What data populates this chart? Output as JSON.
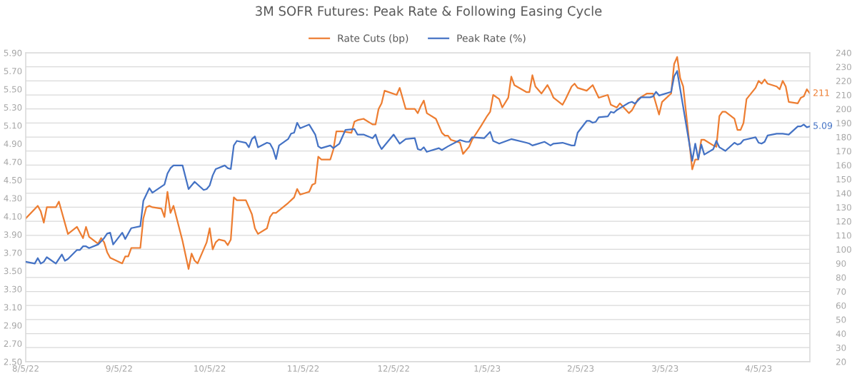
{
  "chart_data": {
    "type": "line",
    "title": "3M SOFR Futures: Peak Rate & Following Easing Cycle",
    "legend": "top",
    "grid": true,
    "marker": "none",
    "line_style": "solid",
    "xlim": [
      "2022-08-05",
      "2023-04-22"
    ],
    "xticks": [
      {
        "value": "2022-08-05",
        "label": "8/5/22"
      },
      {
        "value": "2022-09-05",
        "label": "9/5/22"
      },
      {
        "value": "2022-10-05",
        "label": "10/5/22"
      },
      {
        "value": "2022-11-05",
        "label": "11/5/22"
      },
      {
        "value": "2022-12-05",
        "label": "12/5/22"
      },
      {
        "value": "2023-01-05",
        "label": "1/5/23"
      },
      {
        "value": "2023-02-05",
        "label": "2/5/23"
      },
      {
        "value": "2023-03-05",
        "label": "3/5/23"
      },
      {
        "value": "2023-04-05",
        "label": "4/5/23"
      }
    ],
    "ylim": [
      2.5,
      5.9
    ],
    "yticks": [
      {
        "value": 2.5,
        "label": "2.50"
      },
      {
        "value": 2.7,
        "label": "2.70"
      },
      {
        "value": 2.9,
        "label": "2.90"
      },
      {
        "value": 3.1,
        "label": "3.10"
      },
      {
        "value": 3.3,
        "label": "3.30"
      },
      {
        "value": 3.5,
        "label": "3.50"
      },
      {
        "value": 3.7,
        "label": "3.70"
      },
      {
        "value": 3.9,
        "label": "3.90"
      },
      {
        "value": 4.1,
        "label": "4.10"
      },
      {
        "value": 4.3,
        "label": "4.30"
      },
      {
        "value": 4.5,
        "label": "4.50"
      },
      {
        "value": 4.7,
        "label": "4.70"
      },
      {
        "value": 4.9,
        "label": "4.90"
      },
      {
        "value": 5.1,
        "label": "5.10"
      },
      {
        "value": 5.3,
        "label": "5.30"
      },
      {
        "value": 5.5,
        "label": "5.50"
      },
      {
        "value": 5.7,
        "label": "5.70"
      },
      {
        "value": 5.9,
        "label": "5.90"
      }
    ],
    "y2lim": [
      20,
      240
    ],
    "y2ticks": [
      20,
      30,
      40,
      50,
      60,
      70,
      80,
      90,
      100,
      110,
      120,
      130,
      140,
      150,
      160,
      170,
      180,
      190,
      200,
      210,
      220,
      230,
      240
    ],
    "series": [
      {
        "name": "Rate Cuts (bp)",
        "color": "#ed7d31",
        "axis": "y2",
        "x": [
          "2022-08-05",
          "2022-08-09",
          "2022-08-10",
          "2022-08-11",
          "2022-08-12",
          "2022-08-15",
          "2022-08-16",
          "2022-08-19",
          "2022-08-22",
          "2022-08-24",
          "2022-08-25",
          "2022-08-26",
          "2022-08-29",
          "2022-08-30",
          "2022-08-31",
          "2022-09-01",
          "2022-09-02",
          "2022-09-06",
          "2022-09-07",
          "2022-09-08",
          "2022-09-09",
          "2022-09-12",
          "2022-09-13",
          "2022-09-14",
          "2022-09-15",
          "2022-09-16",
          "2022-09-19",
          "2022-09-20",
          "2022-09-21",
          "2022-09-22",
          "2022-09-23",
          "2022-09-26",
          "2022-09-28",
          "2022-09-29",
          "2022-09-30",
          "2022-10-01",
          "2022-10-04",
          "2022-10-05",
          "2022-10-06",
          "2022-10-07",
          "2022-10-08",
          "2022-10-10",
          "2022-10-11",
          "2022-10-12",
          "2022-10-13",
          "2022-10-14",
          "2022-10-17",
          "2022-10-19",
          "2022-10-20",
          "2022-10-21",
          "2022-10-24",
          "2022-10-25",
          "2022-10-26",
          "2022-10-27",
          "2022-10-31",
          "2022-11-01",
          "2022-11-02",
          "2022-11-03",
          "2022-11-04",
          "2022-11-07",
          "2022-11-08",
          "2022-11-09",
          "2022-11-10",
          "2022-11-11",
          "2022-11-14",
          "2022-11-15",
          "2022-11-16",
          "2022-11-18",
          "2022-11-21",
          "2022-11-22",
          "2022-11-23",
          "2022-11-25",
          "2022-11-28",
          "2022-11-29",
          "2022-11-30",
          "2022-12-01",
          "2022-12-02",
          "2022-12-06",
          "2022-12-07",
          "2022-12-09",
          "2022-12-12",
          "2022-12-13",
          "2022-12-14",
          "2022-12-15",
          "2022-12-16",
          "2022-12-19",
          "2022-12-21",
          "2022-12-22",
          "2022-12-23",
          "2022-12-24",
          "2022-12-27",
          "2022-12-28",
          "2022-12-30",
          "2022-12-31",
          "2023-01-03",
          "2023-01-05",
          "2023-01-06",
          "2023-01-07",
          "2023-01-09",
          "2023-01-10",
          "2023-01-12",
          "2023-01-13",
          "2023-01-14",
          "2023-01-18",
          "2023-01-19",
          "2023-01-20",
          "2023-01-21",
          "2023-01-23",
          "2023-01-25",
          "2023-01-26",
          "2023-01-27",
          "2023-01-30",
          "2023-01-31",
          "2023-02-02",
          "2023-02-03",
          "2023-02-04",
          "2023-02-07",
          "2023-02-09",
          "2023-02-11",
          "2023-02-14",
          "2023-02-15",
          "2023-02-17",
          "2023-02-18",
          "2023-02-21",
          "2023-02-22",
          "2023-02-24",
          "2023-02-27",
          "2023-03-01",
          "2023-03-03",
          "2023-03-04",
          "2023-03-07",
          "2023-03-08",
          "2023-03-09",
          "2023-03-10",
          "2023-03-11",
          "2023-03-14",
          "2023-03-15",
          "2023-03-16",
          "2023-03-17",
          "2023-03-18",
          "2023-03-21",
          "2023-03-22",
          "2023-03-23",
          "2023-03-24",
          "2023-03-25",
          "2023-03-28",
          "2023-03-29",
          "2023-03-30",
          "2023-03-31",
          "2023-04-01",
          "2023-04-04",
          "2023-04-05",
          "2023-04-06",
          "2023-04-07",
          "2023-04-08",
          "2023-04-11",
          "2023-04-12",
          "2023-04-13",
          "2023-04-14",
          "2023-04-15",
          "2023-04-18",
          "2023-04-19",
          "2023-04-20",
          "2023-04-21",
          "2023-04-22"
        ],
        "values": [
          122,
          131,
          127,
          119,
          130,
          130,
          134,
          111,
          116,
          108,
          116,
          109,
          104,
          108,
          105,
          98,
          94,
          90,
          95,
          95,
          101,
          101,
          122,
          130,
          131,
          130,
          129,
          123,
          141,
          126,
          131,
          106,
          86,
          97,
          92,
          90,
          105,
          115,
          100,
          105,
          107,
          106,
          103,
          107,
          137,
          135,
          135,
          125,
          115,
          111,
          115,
          123,
          126,
          126,
          133,
          135,
          137,
          143,
          139,
          141,
          146,
          147,
          166,
          164,
          164,
          171,
          184,
          184,
          183,
          191,
          192,
          193,
          189,
          189,
          200,
          204,
          213,
          210,
          215,
          200,
          200,
          197,
          202,
          206,
          197,
          193,
          183,
          181,
          181,
          178,
          176,
          168,
          173,
          178,
          188,
          195,
          198,
          210,
          207,
          201,
          208,
          223,
          217,
          212,
          212,
          224,
          216,
          211,
          217,
          213,
          208,
          203,
          207,
          216,
          218,
          215,
          213,
          217,
          208,
          210,
          203,
          201,
          204,
          197,
          199,
          207,
          211,
          211,
          196,
          205,
          211,
          232,
          237,
          222,
          216,
          157,
          164,
          164,
          178,
          178,
          174,
          173,
          195,
          198,
          198,
          193,
          185,
          185,
          190,
          207,
          215,
          220,
          218,
          221,
          218,
          216,
          214,
          220,
          216,
          205,
          204,
          208,
          209,
          214,
          211
        ],
        "value_labels": [
          null,
          null,
          null,
          null,
          null,
          null,
          null,
          null,
          null,
          null,
          null,
          null,
          null,
          null,
          null,
          null,
          null,
          null,
          null,
          null,
          null,
          null,
          null,
          null,
          null,
          null,
          null,
          null,
          null,
          null,
          null,
          null,
          null,
          null,
          null,
          null,
          null,
          null,
          null,
          null,
          null,
          null,
          null,
          null,
          null,
          null,
          null,
          null,
          null,
          null,
          null,
          null,
          null,
          null,
          null,
          null,
          null,
          null,
          null,
          null,
          null,
          null,
          null,
          null,
          null,
          null,
          null,
          null,
          null,
          null,
          null,
          null,
          null,
          null,
          null,
          null,
          null,
          null,
          null,
          null,
          null,
          null,
          null,
          null,
          null,
          null,
          null,
          null,
          null,
          null,
          null,
          null,
          null,
          null,
          null,
          null,
          null,
          null,
          null,
          null,
          null,
          null,
          null,
          null,
          null,
          null,
          null,
          null,
          null,
          null,
          null,
          null,
          null,
          null,
          null,
          null,
          null,
          null,
          null,
          null,
          null,
          null,
          null,
          null,
          null,
          null,
          null,
          null,
          null,
          null,
          null,
          null,
          null,
          null,
          null,
          null,
          null,
          null,
          null,
          null,
          null,
          null,
          null,
          null,
          null,
          null,
          null,
          null,
          null,
          null,
          null,
          null,
          null,
          null,
          null,
          null,
          null,
          null,
          null,
          null,
          null,
          null,
          null,
          null,
          "211"
        ]
      },
      {
        "name": "Peak Rate (%)",
        "color": "#4472c4",
        "x": [
          "2022-08-05",
          "2022-08-08",
          "2022-08-09",
          "2022-08-10",
          "2022-08-11",
          "2022-08-12",
          "2022-08-15",
          "2022-08-17",
          "2022-08-18",
          "2022-08-19",
          "2022-08-22",
          "2022-08-23",
          "2022-08-24",
          "2022-08-25",
          "2022-08-26",
          "2022-08-29",
          "2022-08-31",
          "2022-09-01",
          "2022-09-02",
          "2022-09-03",
          "2022-09-06",
          "2022-09-07",
          "2022-09-09",
          "2022-09-12",
          "2022-09-13",
          "2022-09-15",
          "2022-09-16",
          "2022-09-20",
          "2022-09-21",
          "2022-09-22",
          "2022-09-23",
          "2022-09-26",
          "2022-09-28",
          "2022-09-30",
          "2022-10-03",
          "2022-10-04",
          "2022-10-05",
          "2022-10-06",
          "2022-10-07",
          "2022-10-10",
          "2022-10-11",
          "2022-10-12",
          "2022-10-13",
          "2022-10-14",
          "2022-10-17",
          "2022-10-18",
          "2022-10-19",
          "2022-10-20",
          "2022-10-21",
          "2022-10-24",
          "2022-10-25",
          "2022-10-26",
          "2022-10-27",
          "2022-10-28",
          "2022-10-31",
          "2022-11-01",
          "2022-11-02",
          "2022-11-03",
          "2022-11-04",
          "2022-11-07",
          "2022-11-09",
          "2022-11-10",
          "2022-11-11",
          "2022-11-14",
          "2022-11-15",
          "2022-11-17",
          "2022-11-19",
          "2022-11-22",
          "2022-11-23",
          "2022-11-25",
          "2022-11-28",
          "2022-11-29",
          "2022-11-30",
          "2022-12-01",
          "2022-12-05",
          "2022-12-07",
          "2022-12-09",
          "2022-12-12",
          "2022-12-13",
          "2022-12-14",
          "2022-12-15",
          "2022-12-16",
          "2022-12-20",
          "2022-12-21",
          "2022-12-23",
          "2022-12-27",
          "2022-12-29",
          "2022-12-30",
          "2022-12-31",
          "2023-01-04",
          "2023-01-06",
          "2023-01-07",
          "2023-01-09",
          "2023-01-13",
          "2023-01-18",
          "2023-01-19",
          "2023-01-20",
          "2023-01-21",
          "2023-01-24",
          "2023-01-26",
          "2023-01-27",
          "2023-01-30",
          "2023-02-02",
          "2023-02-03",
          "2023-02-04",
          "2023-02-07",
          "2023-02-08",
          "2023-02-09",
          "2023-02-10",
          "2023-02-11",
          "2023-02-14",
          "2023-02-15",
          "2023-02-16",
          "2023-02-17",
          "2023-02-18",
          "2023-02-21",
          "2023-02-22",
          "2023-02-23",
          "2023-02-25",
          "2023-02-28",
          "2023-03-01",
          "2023-03-02",
          "2023-03-03",
          "2023-03-07",
          "2023-03-08",
          "2023-03-09",
          "2023-03-14",
          "2023-03-15",
          "2023-03-16",
          "2023-03-17",
          "2023-03-18",
          "2023-03-21",
          "2023-03-22",
          "2023-03-23",
          "2023-03-25",
          "2023-03-28",
          "2023-03-29",
          "2023-03-30",
          "2023-03-31",
          "2023-04-04",
          "2023-04-05",
          "2023-04-06",
          "2023-04-07",
          "2023-04-08",
          "2023-04-11",
          "2023-04-13",
          "2023-04-15",
          "2023-04-18",
          "2023-04-19",
          "2023-04-20",
          "2023-04-21",
          "2023-04-22"
        ],
        "values": [
          3.6,
          3.58,
          3.64,
          3.58,
          3.6,
          3.65,
          3.58,
          3.68,
          3.61,
          3.63,
          3.73,
          3.73,
          3.77,
          3.77,
          3.75,
          3.79,
          3.86,
          3.91,
          3.92,
          3.79,
          3.92,
          3.85,
          3.97,
          3.99,
          4.27,
          4.41,
          4.36,
          4.45,
          4.57,
          4.63,
          4.66,
          4.66,
          4.4,
          4.48,
          4.39,
          4.4,
          4.44,
          4.55,
          4.62,
          4.66,
          4.63,
          4.62,
          4.88,
          4.93,
          4.91,
          4.86,
          4.95,
          4.98,
          4.86,
          4.91,
          4.9,
          4.84,
          4.73,
          4.88,
          4.95,
          5.01,
          5.02,
          5.13,
          5.07,
          5.11,
          5.0,
          4.87,
          4.85,
          4.88,
          4.85,
          4.9,
          5.05,
          5.06,
          5.0,
          5.0,
          4.96,
          5.0,
          4.9,
          4.84,
          5.0,
          4.9,
          4.95,
          4.96,
          4.84,
          4.83,
          4.86,
          4.81,
          4.85,
          4.83,
          4.87,
          4.94,
          4.92,
          4.92,
          4.97,
          4.96,
          5.03,
          4.93,
          4.9,
          4.95,
          4.91,
          4.9,
          4.88,
          4.89,
          4.92,
          4.88,
          4.9,
          4.91,
          4.88,
          4.88,
          5.02,
          5.15,
          5.15,
          5.13,
          5.14,
          5.19,
          5.2,
          5.25,
          5.24,
          5.27,
          5.29,
          5.35,
          5.36,
          5.34,
          5.41,
          5.41,
          5.42,
          5.47,
          5.43,
          5.47,
          5.64,
          5.7,
          4.71,
          4.9,
          4.73,
          4.89,
          4.78,
          4.84,
          4.93,
          4.86,
          4.82,
          4.91,
          4.89,
          4.9,
          4.94,
          4.97,
          4.91,
          4.9,
          4.92,
          4.99,
          5.01,
          5.01,
          5.0,
          5.09,
          5.09,
          5.11,
          5.08,
          5.09
        ],
        "value_labels": [
          null,
          null,
          null,
          null,
          null,
          null,
          null,
          null,
          null,
          null,
          null,
          null,
          null,
          null,
          null,
          null,
          null,
          null,
          null,
          null,
          null,
          null,
          null,
          null,
          null,
          null,
          null,
          null,
          null,
          null,
          null,
          null,
          null,
          null,
          null,
          null,
          null,
          null,
          null,
          null,
          null,
          null,
          null,
          null,
          null,
          null,
          null,
          null,
          null,
          null,
          null,
          null,
          null,
          null,
          null,
          null,
          null,
          null,
          null,
          null,
          null,
          null,
          null,
          null,
          null,
          null,
          null,
          null,
          null,
          null,
          null,
          null,
          null,
          null,
          null,
          null,
          null,
          null,
          null,
          null,
          null,
          null,
          null,
          null,
          null,
          null,
          null,
          null,
          null,
          null,
          null,
          null,
          null,
          null,
          null,
          null,
          null,
          null,
          null,
          null,
          null,
          null,
          null,
          null,
          null,
          null,
          null,
          null,
          null,
          null,
          null,
          null,
          null,
          null,
          null,
          null,
          null,
          null,
          null,
          null,
          null,
          null,
          null,
          null,
          null,
          null,
          null,
          null,
          null,
          null,
          null,
          null,
          null,
          null,
          null,
          null,
          null,
          null,
          null,
          null,
          null,
          null,
          null,
          null,
          null,
          null,
          null,
          null,
          null,
          null,
          null,
          "5.09"
        ]
      }
    ]
  }
}
